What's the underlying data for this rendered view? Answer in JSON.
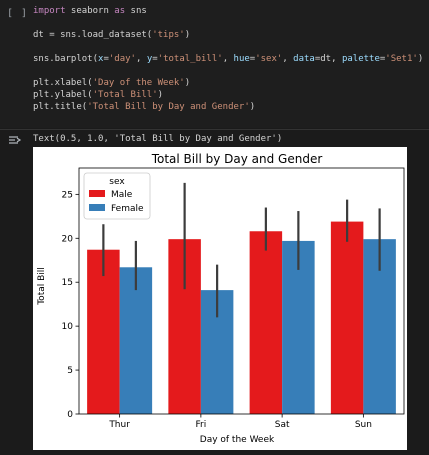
{
  "cell": {
    "run_indicator": "[ ]",
    "code_lines": [
      [
        {
          "t": "kw",
          "v": "import"
        },
        {
          "t": "tx",
          "v": " seaborn "
        },
        {
          "t": "kw",
          "v": "as"
        },
        {
          "t": "tx",
          "v": " sns"
        }
      ],
      [],
      [
        {
          "t": "tx",
          "v": "dt = sns.load_dataset("
        },
        {
          "t": "st",
          "v": "'tips'"
        },
        {
          "t": "tx",
          "v": ")"
        }
      ],
      [],
      [
        {
          "t": "tx",
          "v": "sns.barplot("
        },
        {
          "t": "nm",
          "v": "x"
        },
        {
          "t": "tx",
          "v": "="
        },
        {
          "t": "st",
          "v": "'day'"
        },
        {
          "t": "tx",
          "v": ", "
        },
        {
          "t": "nm",
          "v": "y"
        },
        {
          "t": "tx",
          "v": "="
        },
        {
          "t": "st",
          "v": "'total_bill'"
        },
        {
          "t": "tx",
          "v": ", "
        },
        {
          "t": "nm",
          "v": "hue"
        },
        {
          "t": "tx",
          "v": "="
        },
        {
          "t": "st",
          "v": "'sex'"
        },
        {
          "t": "tx",
          "v": ", "
        },
        {
          "t": "nm",
          "v": "data"
        },
        {
          "t": "tx",
          "v": "=dt, "
        },
        {
          "t": "nm",
          "v": "palette"
        },
        {
          "t": "tx",
          "v": "="
        },
        {
          "t": "st",
          "v": "'Set1'"
        },
        {
          "t": "tx",
          "v": ")"
        }
      ],
      [],
      [
        {
          "t": "tx",
          "v": "plt.xlabel("
        },
        {
          "t": "st",
          "v": "'Day of the Week'"
        },
        {
          "t": "tx",
          "v": ")"
        }
      ],
      [
        {
          "t": "tx",
          "v": "plt.ylabel("
        },
        {
          "t": "st",
          "v": "'Total Bill'"
        },
        {
          "t": "tx",
          "v": ")"
        }
      ],
      [
        {
          "t": "tx",
          "v": "plt.title("
        },
        {
          "t": "st",
          "v": "'Total Bill by Day and Gender'"
        },
        {
          "t": "tx",
          "v": ")"
        }
      ]
    ]
  },
  "output": {
    "icon": "output-toggle-icon",
    "text": "Text(0.5, 1.0, 'Total Bill by Day and Gender')"
  },
  "chart_data": {
    "type": "bar",
    "title": "Total Bill by Day and Gender",
    "xlabel": "Day of the Week",
    "ylabel": "Total Bill",
    "categories": [
      "Thur",
      "Fri",
      "Sat",
      "Sun"
    ],
    "ylim": [
      0,
      28
    ],
    "yticks": [
      0,
      5,
      10,
      15,
      20,
      25
    ],
    "legend": {
      "title": "sex",
      "placement": "top-left"
    },
    "series": [
      {
        "name": "Male",
        "color": "#e41a1c",
        "values": [
          18.7,
          19.9,
          20.8,
          21.9
        ],
        "err_low": [
          15.7,
          14.2,
          18.6,
          19.6
        ],
        "err_high": [
          21.6,
          26.3,
          23.5,
          24.4
        ]
      },
      {
        "name": "Female",
        "color": "#377eb8",
        "values": [
          16.7,
          14.1,
          19.7,
          19.9
        ],
        "err_low": [
          14.1,
          11.0,
          16.4,
          16.3
        ],
        "err_high": [
          19.7,
          17.0,
          23.1,
          23.4
        ]
      }
    ],
    "errbar_color": "#3c3c3c"
  }
}
